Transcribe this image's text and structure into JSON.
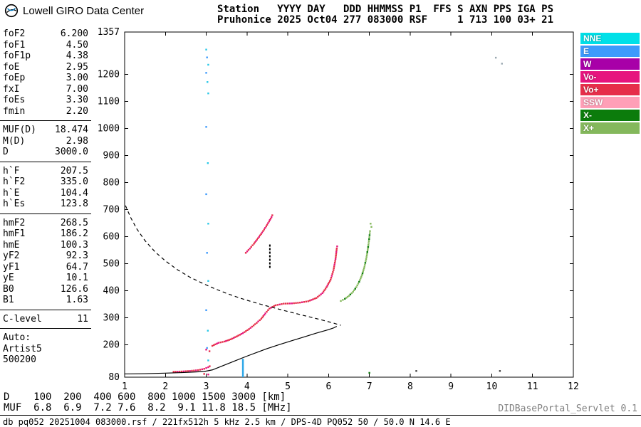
{
  "header": {
    "brand": "Lowell GIRO Data Center",
    "line1": "Station   YYYY DAY   DDD HHMMSS P1  FFS S AXN PPS IGA PS",
    "line2": "Pruhonice 2025 Oct04 277 083000 RSF     1 713 100 03+ 21"
  },
  "parameters": {
    "groups": [
      {
        "rows": [
          [
            "foF2",
            "6.200"
          ],
          [
            "foF1",
            "4.50"
          ],
          [
            "foF1p",
            "4.38"
          ],
          [
            "foE",
            "2.95"
          ],
          [
            "foEp",
            "3.00"
          ],
          [
            "fxI",
            "7.00"
          ],
          [
            "foEs",
            "3.30"
          ],
          [
            "fmin",
            "2.20"
          ]
        ]
      },
      {
        "rows": [
          [
            "MUF(D)",
            "18.474"
          ],
          [
            "M(D)",
            "2.98"
          ],
          [
            "D",
            "3000.0"
          ]
        ]
      },
      {
        "rows": [
          [
            "h`F",
            "207.5"
          ],
          [
            "h`F2",
            "335.0"
          ],
          [
            "h`E",
            "104.4"
          ],
          [
            "h`Es",
            "123.8"
          ]
        ]
      },
      {
        "rows": [
          [
            "hmF2",
            "268.5"
          ],
          [
            "hmF1",
            "186.2"
          ],
          [
            "hmE",
            "100.3"
          ],
          [
            "yF2",
            "92.3"
          ],
          [
            "yF1",
            "64.7"
          ],
          [
            "yE",
            "10.1"
          ],
          [
            "B0",
            "126.6"
          ],
          [
            "B1",
            "1.63"
          ]
        ]
      },
      {
        "rows": [
          [
            "C-level",
            "11"
          ]
        ]
      }
    ],
    "auto_lines": [
      "Auto:",
      "Artist5",
      "500200"
    ]
  },
  "legend": [
    {
      "label": "NNE",
      "color": "#00E0E8"
    },
    {
      "label": "E",
      "color": "#3D9AFC"
    },
    {
      "label": "W",
      "color": "#A800A8"
    },
    {
      "label": "Vo-",
      "color": "#E6157E"
    },
    {
      "label": "Vo+",
      "color": "#E62E4A"
    },
    {
      "label": "SSW",
      "color": "#FF9FB7"
    },
    {
      "label": "X-",
      "color": "#0C7C0C"
    },
    {
      "label": "X+",
      "color": "#84B85C"
    }
  ],
  "chart_data": {
    "type": "scatter",
    "title": "",
    "xlabel": "",
    "ylabel": "",
    "xlim": [
      1,
      12
    ],
    "ylim": [
      80,
      1357
    ],
    "x_ticks": [
      1,
      2,
      3,
      4,
      5,
      6,
      7,
      8,
      9,
      10,
      11,
      12
    ],
    "y_ticks": [
      80,
      200,
      300,
      400,
      500,
      600,
      700,
      800,
      900,
      1000,
      1100,
      1200,
      1357
    ],
    "grid": false,
    "legend_position": "right",
    "series": [
      {
        "name": "O-mode Es trace",
        "style": "dots",
        "color": "#E62E4A",
        "colors": [
          "#E62E4A",
          "#E62E4A",
          "#E6157E"
        ],
        "points": [
          [
            2.2,
            100
          ],
          [
            2.4,
            101
          ],
          [
            2.6,
            103
          ],
          [
            2.8,
            106
          ],
          [
            2.95,
            111
          ],
          [
            3.05,
            117
          ],
          [
            3.12,
            124
          ]
        ]
      },
      {
        "name": "O-mode F trace",
        "style": "dots",
        "color": "#E62E4A",
        "colors": [
          "#E62E4A",
          "#E62E4A",
          "#E62E4A",
          "#E6157E"
        ],
        "points": [
          [
            3.15,
            196
          ],
          [
            3.3,
            207
          ],
          [
            3.45,
            212
          ],
          [
            3.6,
            220
          ],
          [
            3.75,
            231
          ],
          [
            3.9,
            243
          ],
          [
            4.05,
            258
          ],
          [
            4.2,
            276
          ],
          [
            4.35,
            296
          ],
          [
            4.45,
            316
          ],
          [
            4.55,
            334
          ],
          [
            4.7,
            346
          ],
          [
            4.9,
            352
          ],
          [
            5.1,
            353
          ],
          [
            5.3,
            356
          ],
          [
            5.5,
            361
          ],
          [
            5.7,
            373
          ],
          [
            5.85,
            391
          ],
          [
            5.95,
            413
          ],
          [
            6.05,
            441
          ],
          [
            6.12,
            476
          ],
          [
            6.17,
            517
          ],
          [
            6.2,
            556
          ],
          [
            6.22,
            572
          ]
        ]
      },
      {
        "name": "O-mode spread echo",
        "style": "dots",
        "color": "#E62E4A",
        "colors": [
          "#E62E4A",
          "#E6157E",
          "#E62E4A"
        ],
        "points": [
          [
            3.97,
            540
          ],
          [
            4.07,
            556
          ],
          [
            4.17,
            574
          ],
          [
            4.27,
            594
          ],
          [
            4.37,
            615
          ],
          [
            4.47,
            638
          ],
          [
            4.54,
            656
          ],
          [
            4.6,
            672
          ],
          [
            4.64,
            686
          ]
        ]
      },
      {
        "name": "X-mode F trace",
        "style": "dots",
        "color": "#84B85C",
        "colors": [
          "#84B85C",
          "#84B85C",
          "#84B85C",
          "#0C7C0C"
        ],
        "points": [
          [
            6.3,
            362
          ],
          [
            6.4,
            370
          ],
          [
            6.5,
            381
          ],
          [
            6.6,
            396
          ],
          [
            6.68,
            413
          ],
          [
            6.75,
            433
          ],
          [
            6.82,
            458
          ],
          [
            6.88,
            489
          ],
          [
            6.93,
            524
          ],
          [
            6.97,
            562
          ],
          [
            7.0,
            598
          ],
          [
            7.02,
            628
          ]
        ]
      },
      {
        "name": "true-height profile",
        "style": "line",
        "color": "#000000",
        "points": [
          [
            1.0,
            92
          ],
          [
            1.5,
            93
          ],
          [
            2.0,
            95
          ],
          [
            2.4,
            97
          ],
          [
            2.7,
            99
          ],
          [
            2.95,
            101
          ],
          [
            3.15,
            107
          ],
          [
            3.4,
            122
          ],
          [
            3.7,
            140
          ],
          [
            4.0,
            158
          ],
          [
            4.3,
            175
          ],
          [
            4.5,
            186
          ],
          [
            4.8,
            201
          ],
          [
            5.1,
            215
          ],
          [
            5.4,
            229
          ],
          [
            5.7,
            243
          ],
          [
            6.0,
            256
          ],
          [
            6.12,
            262
          ],
          [
            6.2,
            268
          ]
        ]
      },
      {
        "name": "MUF transmission curve",
        "style": "dashed",
        "color": "#000000",
        "points": [
          [
            1.02,
            715
          ],
          [
            1.15,
            670
          ],
          [
            1.3,
            628
          ],
          [
            1.5,
            585
          ],
          [
            1.75,
            543
          ],
          [
            2.0,
            510
          ],
          [
            2.3,
            477
          ],
          [
            2.6,
            450
          ],
          [
            2.9,
            428
          ],
          [
            3.2,
            408
          ],
          [
            3.5,
            390
          ],
          [
            3.8,
            374
          ],
          [
            4.1,
            360
          ],
          [
            4.4,
            347
          ],
          [
            4.7,
            335
          ],
          [
            5.0,
            323
          ],
          [
            5.4,
            308
          ],
          [
            5.8,
            293
          ],
          [
            6.1,
            281
          ],
          [
            6.3,
            272
          ]
        ]
      },
      {
        "name": "vertical dotted mark",
        "style": "vdots",
        "color": "#000000",
        "points": [
          [
            4.56,
            488
          ],
          [
            4.56,
            567
          ]
        ]
      },
      {
        "name": "E-polarization vertical line",
        "style": "vline",
        "color": "#2FA8E8",
        "points": [
          [
            3.9,
            80
          ],
          [
            3.9,
            148
          ]
        ]
      }
    ],
    "noise_points": [
      [
        3.0,
        1292,
        "#29C8E8"
      ],
      [
        3.02,
        1263,
        "#3D9AFC"
      ],
      [
        3.05,
        1236,
        "#29C8E8"
      ],
      [
        3.0,
        1206,
        "#3D9AFC"
      ],
      [
        3.03,
        1172,
        "#29C8E8"
      ],
      [
        3.05,
        1130,
        "#29C8E8"
      ],
      [
        3.0,
        1006,
        "#3D9AFC"
      ],
      [
        3.04,
        872,
        "#29C8E8"
      ],
      [
        3.0,
        757,
        "#3D9AFC"
      ],
      [
        3.05,
        648,
        "#29C8E8"
      ],
      [
        3.02,
        540,
        "#3D9AFC"
      ],
      [
        3.05,
        436,
        "#29C8E8"
      ],
      [
        3.0,
        328,
        "#3D9AFC"
      ],
      [
        3.04,
        252,
        "#29C8E8"
      ],
      [
        3.02,
        188,
        "#3D9AFC"
      ],
      [
        3.05,
        142,
        "#29C8E8"
      ],
      [
        3.0,
        182,
        "#E6157E"
      ],
      [
        3.08,
        176,
        "#E62E4A"
      ],
      [
        2.95,
        92,
        "#E62E4A"
      ],
      [
        3.05,
        90,
        "#E6157E"
      ],
      [
        8.15,
        103,
        "#444444"
      ],
      [
        10.2,
        103,
        "#444444"
      ],
      [
        10.25,
        1240,
        "#99A8B0"
      ],
      [
        10.1,
        1262,
        "#99A8B0"
      ],
      [
        7.03,
        648,
        "#84B85C"
      ],
      [
        7.05,
        636,
        "#84B85C"
      ],
      [
        7.0,
        96,
        "#0C7C0C"
      ]
    ]
  },
  "footer": {
    "d_line": "D    100  200  400 600  800 1000 1500 3000 [km]",
    "muf_line": "MUF  6.8  6.9  7.2 7.6  8.2  9.1 11.8 18.5 [MHz]",
    "servlet": "DIDBasePortal_Servlet 0.1",
    "status": "db pq052 20251004 083000.rsf / 221fx512h 5 kHz 2.5 km / DPS-4D PQ052 50 / 50.0 N 14.6 E"
  }
}
